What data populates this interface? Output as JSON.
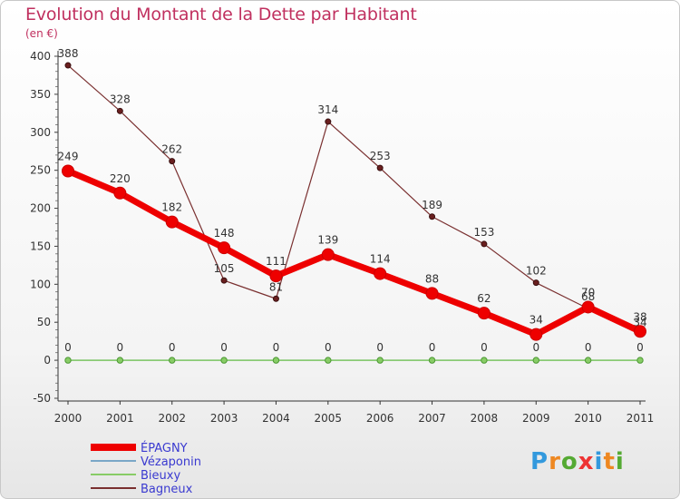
{
  "chart_data": {
    "type": "line",
    "title": "Evolution du Montant de la Dette par Habitant",
    "subtitle": "(en €)",
    "xlabel": "",
    "ylabel": "",
    "ylim": [
      -50,
      400
    ],
    "yticks": [
      -50,
      0,
      50,
      100,
      150,
      200,
      250,
      300,
      350,
      400
    ],
    "categories": [
      "2000",
      "2001",
      "2002",
      "2003",
      "2004",
      "2005",
      "2006",
      "2007",
      "2008",
      "2009",
      "2010",
      "2011"
    ],
    "series": [
      {
        "name": "ÉPAGNY",
        "color": "#ee0000",
        "values": [
          249,
          220,
          182,
          148,
          111,
          139,
          114,
          88,
          62,
          34,
          70,
          38
        ]
      },
      {
        "name": "Vézaponin",
        "color": "#7aa7c7",
        "values": [
          0,
          0,
          0,
          0,
          0,
          0,
          0,
          0,
          0,
          0,
          0,
          0
        ]
      },
      {
        "name": "Bieuxy",
        "color": "#88cc66",
        "values": [
          0,
          0,
          0,
          0,
          0,
          0,
          0,
          0,
          0,
          0,
          0,
          0
        ]
      },
      {
        "name": "Bagneux",
        "color": "#7a3030",
        "values": [
          388,
          328,
          262,
          105,
          81,
          314,
          253,
          189,
          153,
          102,
          68,
          34
        ]
      }
    ]
  },
  "brand": {
    "letters": [
      "P",
      "r",
      "o",
      "x",
      "i",
      "t",
      "i"
    ],
    "colors": [
      "#3399dd",
      "#ee8822",
      "#55aa33",
      "#ee3333",
      "#3399dd",
      "#ee8822",
      "#55aa33"
    ]
  }
}
